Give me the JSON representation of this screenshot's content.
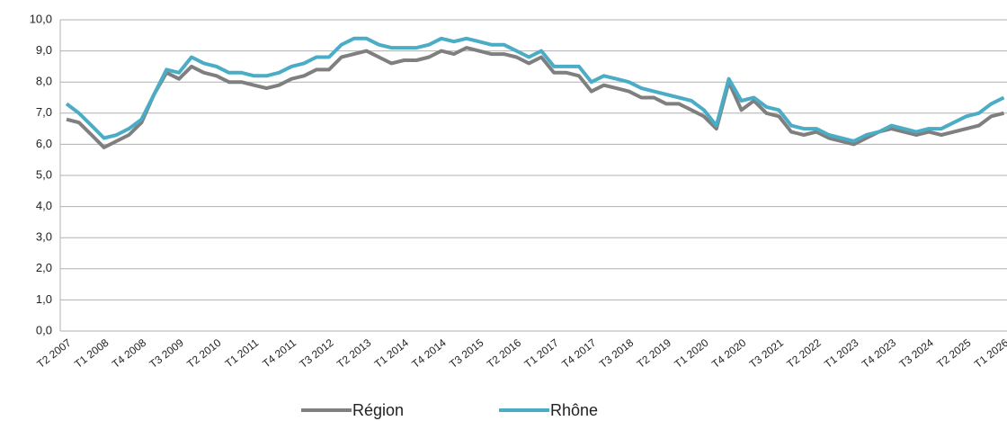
{
  "chart_data": {
    "type": "line",
    "categories": [
      "T2 2007",
      null,
      null,
      "T1 2008",
      null,
      null,
      "T4 2008",
      null,
      null,
      "T3 2009",
      null,
      null,
      "T2 2010",
      null,
      null,
      "T1 2011",
      null,
      null,
      "T4 2011",
      null,
      null,
      "T3 2012",
      null,
      null,
      "T2 2013",
      null,
      null,
      "T1 2014",
      null,
      null,
      "T4 2014",
      null,
      null,
      "T3 2015",
      null,
      null,
      "T2 2016",
      null,
      null,
      "T1 2017",
      null,
      null,
      "T4 2017",
      null,
      null,
      "T3 2018",
      null,
      null,
      "T2 2019",
      null,
      null,
      "T1 2020",
      null,
      null,
      "T4 2020",
      null,
      null,
      "T3 2021",
      null,
      null,
      "T2 2022",
      null,
      null,
      "T1 2023",
      null,
      null,
      "T4 2023",
      null,
      null,
      "T3 2024",
      null,
      null,
      "T2 2025",
      null,
      null,
      "T1 2026"
    ],
    "series": [
      {
        "name": "Région",
        "color": "#7f7f7f",
        "values": [
          6.8,
          6.7,
          6.3,
          5.9,
          6.1,
          6.3,
          6.7,
          7.6,
          8.3,
          8.1,
          8.5,
          8.3,
          8.2,
          8.0,
          8.0,
          7.9,
          7.8,
          7.9,
          8.1,
          8.2,
          8.4,
          8.4,
          8.8,
          8.9,
          9.0,
          8.8,
          8.6,
          8.7,
          8.7,
          8.8,
          9.0,
          8.9,
          9.1,
          9.0,
          8.9,
          8.9,
          8.8,
          8.6,
          8.8,
          8.3,
          8.3,
          8.2,
          7.7,
          7.9,
          7.8,
          7.7,
          7.5,
          7.5,
          7.3,
          7.3,
          7.1,
          6.9,
          6.5,
          8.0,
          7.1,
          7.4,
          7.0,
          6.9,
          6.4,
          6.3,
          6.4,
          6.2,
          6.1,
          6.0,
          6.2,
          6.4,
          6.5,
          6.4,
          6.3,
          6.4,
          6.3,
          6.4,
          6.5,
          6.6,
          6.9,
          7.0
        ]
      },
      {
        "name": "Rhône",
        "color": "#4bacc6",
        "values": [
          7.3,
          7.0,
          6.6,
          6.2,
          6.3,
          6.5,
          6.8,
          7.6,
          8.4,
          8.3,
          8.8,
          8.6,
          8.5,
          8.3,
          8.3,
          8.2,
          8.2,
          8.3,
          8.5,
          8.6,
          8.8,
          8.8,
          9.2,
          9.4,
          9.4,
          9.2,
          9.1,
          9.1,
          9.1,
          9.2,
          9.4,
          9.3,
          9.4,
          9.3,
          9.2,
          9.2,
          9.0,
          8.8,
          9.0,
          8.5,
          8.5,
          8.5,
          8.0,
          8.2,
          8.1,
          8.0,
          7.8,
          7.7,
          7.6,
          7.5,
          7.4,
          7.1,
          6.6,
          8.1,
          7.4,
          7.5,
          7.2,
          7.1,
          6.6,
          6.5,
          6.5,
          6.3,
          6.2,
          6.1,
          6.3,
          6.4,
          6.6,
          6.5,
          6.4,
          6.5,
          6.5,
          6.7,
          6.9,
          7.0,
          7.3,
          7.5
        ]
      }
    ],
    "ylim": [
      0,
      10
    ],
    "yticks": [
      {
        "value": 0,
        "label": "0,0"
      },
      {
        "value": 1,
        "label": "1,0"
      },
      {
        "value": 2,
        "label": "2,0"
      },
      {
        "value": 3,
        "label": "3,0"
      },
      {
        "value": 4,
        "label": "4,0"
      },
      {
        "value": 5,
        "label": "5,0"
      },
      {
        "value": 6,
        "label": "6,0"
      },
      {
        "value": 7,
        "label": "7,0"
      },
      {
        "value": 8,
        "label": "8,0"
      },
      {
        "value": 9,
        "label": "9,0"
      },
      {
        "value": 10,
        "label": "10,0"
      }
    ],
    "grid": true,
    "legend": "bottom"
  }
}
